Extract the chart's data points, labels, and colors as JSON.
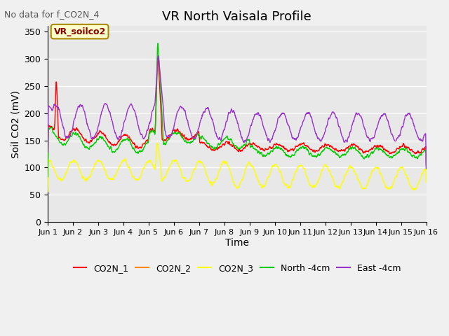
{
  "title": "VR North Vaisala Profile",
  "top_left_text": "No data for f_CO2N_4",
  "box_label": "VR_soilco2",
  "ylabel": "Soil CO2 (mV)",
  "xlabel": "Time",
  "ylim": [
    0,
    360
  ],
  "yticks": [
    0,
    50,
    100,
    150,
    200,
    250,
    300,
    350
  ],
  "legend_entries": [
    "CO2N_1",
    "CO2N_2",
    "CO2N_3",
    "North -4cm",
    "East -4cm"
  ],
  "legend_colors": [
    "#ff0000",
    "#ff8800",
    "#ffff00",
    "#00cc00",
    "#9933cc"
  ],
  "xmin": 0,
  "xmax": 15,
  "xtick_positions": [
    0,
    1,
    2,
    3,
    4,
    5,
    6,
    7,
    8,
    9,
    10,
    11,
    12,
    13,
    14,
    15
  ],
  "xtick_labels": [
    "Jun 1",
    "Jun 2",
    "Jun 3",
    "Jun 4",
    "Jun 5",
    "Jun 6",
    "Jun 7",
    "Jun 8",
    "Jun 9",
    "Jun 10",
    "Jun 11",
    "Jun 12",
    "Jun 13",
    "Jun 14",
    "Jun 15",
    "Jun 16"
  ]
}
